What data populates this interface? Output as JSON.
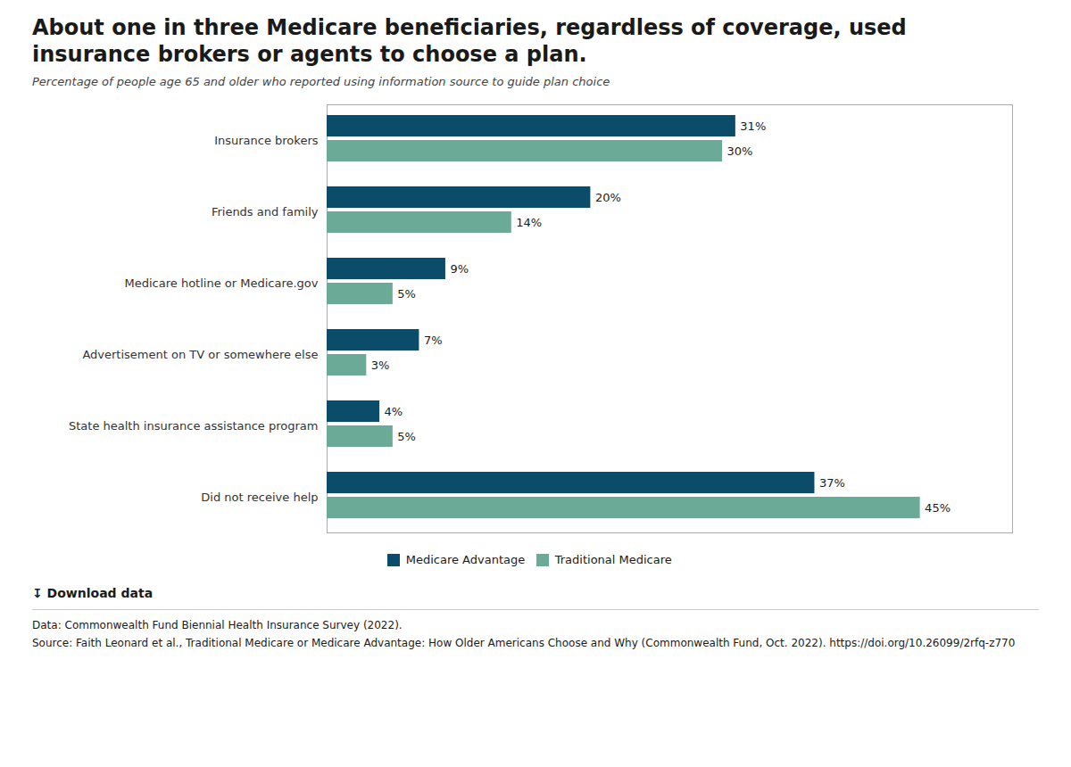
{
  "chart_data": {
    "type": "bar",
    "orientation": "horizontal",
    "title": "About one in three Medicare beneficiaries, regardless of coverage, used insurance brokers or agents to choose a plan.",
    "subtitle": "Percentage of people age 65 and older who reported using information source to guide plan choice",
    "categories": [
      "Insurance brokers",
      "Friends and family",
      "Medicare hotline or Medicare.gov",
      "Advertisement on TV or somewhere else",
      "State health insurance assistance program",
      "Did not receive help"
    ],
    "series": [
      {
        "name": "Medicare Advantage",
        "color": "#0a4c6a",
        "values": [
          31,
          20,
          9,
          7,
          4,
          37
        ],
        "value_labels": [
          "31%",
          "20%",
          "9%",
          "7%",
          "4%",
          "37%"
        ]
      },
      {
        "name": "Traditional Medicare",
        "color": "#6aaa96",
        "values": [
          30,
          14,
          5,
          3,
          5,
          45
        ],
        "value_labels": [
          "30%",
          "14%",
          "5%",
          "3%",
          "5%",
          "45%"
        ]
      }
    ],
    "xlim": [
      0,
      52
    ],
    "data_labels": true,
    "tick_labels": "y",
    "grid": false,
    "legend": "bottom",
    "annotations": [
      "↧  Download data",
      "Data: Commonwealth Fund Biennial Health Insurance Survey (2022).",
      "Source: Faith Leonard et al., Traditional Medicare or Medicare Advantage: How Older Americans Choose and Why (Commonwealth Fund, Oct. 2022). https://doi.org/10.26099/2rfq-z770"
    ]
  }
}
